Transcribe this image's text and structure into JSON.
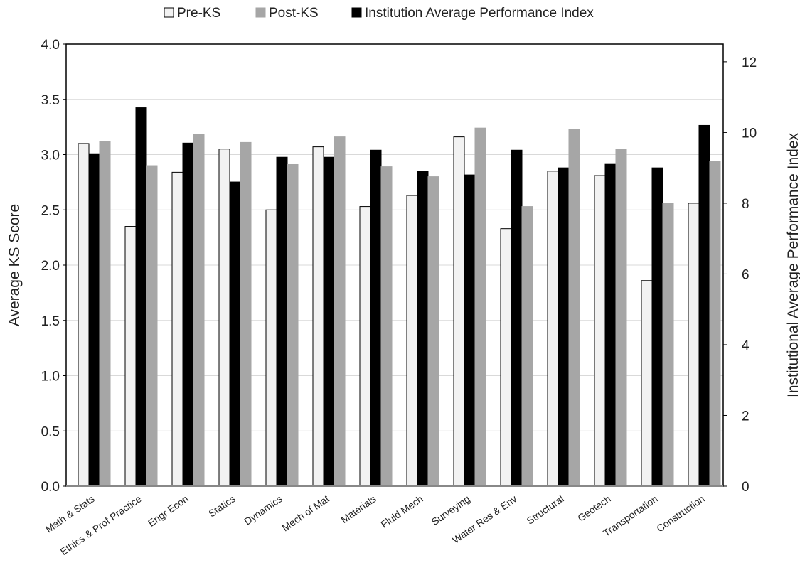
{
  "chart_data": {
    "type": "bar",
    "categories": [
      "Math & Stats",
      "Ethics & Prof Practice",
      "Engr Econ",
      "Statics",
      "Dynamics",
      "Mech of Mat",
      "Materials",
      "Fluid Mech",
      "Surveying",
      "Water Res & Env",
      "Structural",
      "Geotech",
      "Transportation",
      "Construction"
    ],
    "series": [
      {
        "name": "Pre-KS",
        "axis": "left",
        "color": "#f2f2f2",
        "stroke": "#000000",
        "values": [
          3.1,
          2.35,
          2.84,
          3.05,
          2.5,
          3.07,
          2.53,
          2.63,
          3.16,
          2.33,
          2.85,
          2.81,
          1.86,
          2.56
        ]
      },
      {
        "name": "Institution Average Performance Index",
        "axis": "right",
        "color": "#000000",
        "stroke": "#000000",
        "values": [
          9.4,
          10.7,
          9.7,
          8.6,
          9.3,
          9.3,
          9.5,
          8.9,
          8.8,
          9.5,
          9.0,
          9.1,
          9.0,
          10.2
        ]
      },
      {
        "name": "Post-KS",
        "axis": "left",
        "color": "#a6a6a6",
        "stroke": "#a6a6a6",
        "values": [
          3.12,
          2.9,
          3.18,
          3.11,
          2.91,
          3.16,
          2.89,
          2.8,
          3.24,
          2.53,
          3.23,
          3.05,
          2.56,
          2.94
        ]
      }
    ],
    "legend": {
      "position": "top",
      "order": [
        "Pre-KS",
        "Post-KS",
        "Institution Average Performance Index"
      ]
    },
    "ylabel": "Average KS Score",
    "ylim": [
      0,
      4.0
    ],
    "yticks": [
      "0.0",
      "0.5",
      "1.0",
      "1.5",
      "2.0",
      "2.5",
      "3.0",
      "3.5",
      "4.0"
    ],
    "y2label": "Institutional Average Performance Index",
    "y2lim": [
      0,
      12.5
    ],
    "y2ticks": [
      "0",
      "2",
      "4",
      "6",
      "8",
      "10",
      "12"
    ],
    "grid": "horizontal",
    "grid_color": "#d9d9d9"
  }
}
